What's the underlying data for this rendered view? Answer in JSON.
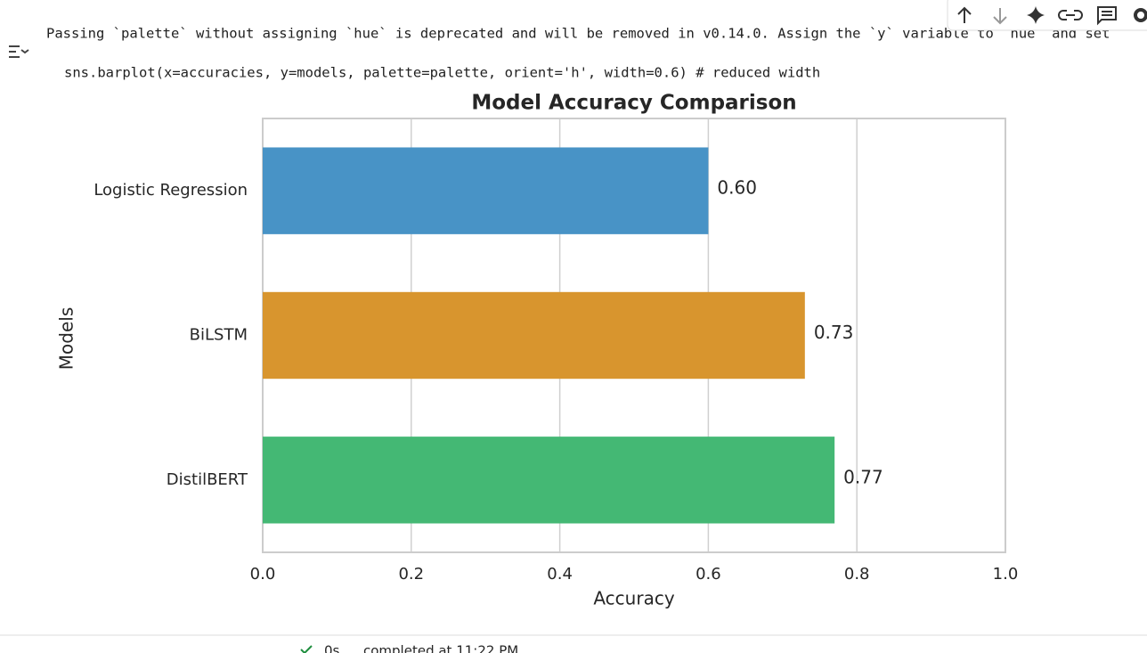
{
  "output": {
    "warning": "Passing `palette` without assigning `hue` is deprecated and will be removed in v0.14.0. Assign the `y` variable to `hue` and set",
    "code": "sns.barplot(x=accuracies, y=models, palette=palette, orient='h', width=0.6)  # reduced width"
  },
  "status": {
    "duration": "0s",
    "completed": "completed at 11:22 PM"
  },
  "chart_data": {
    "type": "barh",
    "title": "Model Accuracy Comparison",
    "xlabel": "Accuracy",
    "ylabel": "Models",
    "categories": [
      "Logistic Regression",
      "BiLSTM",
      "DistilBERT"
    ],
    "values": [
      0.6,
      0.73,
      0.77
    ],
    "value_labels": [
      "0.60",
      "0.73",
      "0.77"
    ],
    "colors": [
      "#4893c6",
      "#d8952e",
      "#44b874"
    ],
    "xlim": [
      0,
      1
    ],
    "xticks": [
      {
        "value": 0,
        "label": "0.0"
      },
      0.2,
      0.4,
      0.6,
      0.8,
      {
        "value": 1,
        "label": "1.0"
      }
    ],
    "grid": true
  }
}
